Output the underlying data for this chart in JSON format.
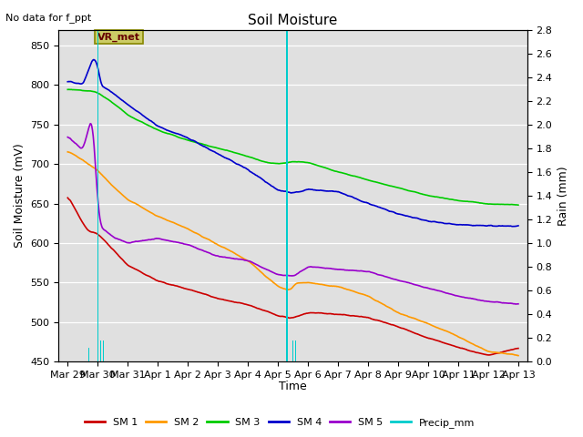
{
  "title": "Soil Moisture",
  "subtitle": "No data for f_ppt",
  "ylabel_left": "Soil Moisture (mV)",
  "ylabel_right": "Rain (mm)",
  "xlabel": "Time",
  "ylim_left": [
    450,
    870
  ],
  "ylim_right": [
    0.0,
    2.8
  ],
  "yticks_left": [
    450,
    500,
    550,
    600,
    650,
    700,
    750,
    800,
    850
  ],
  "yticks_right": [
    0.0,
    0.2,
    0.4,
    0.6,
    0.8,
    1.0,
    1.2,
    1.4,
    1.6,
    1.8,
    2.0,
    2.2,
    2.4,
    2.6,
    2.8
  ],
  "xtick_labels": [
    "Mar 29",
    "Mar 30",
    "Mar 31",
    "Apr 1",
    "Apr 2",
    "Apr 3",
    "Apr 4",
    "Apr 5",
    "Apr 6",
    "Apr 7",
    "Apr 8",
    "Apr 9",
    "Apr 10",
    "Apr 11",
    "Apr 12",
    "Apr 13"
  ],
  "colors": {
    "SM1": "#cc0000",
    "SM2": "#ff9900",
    "SM3": "#00cc00",
    "SM4": "#0000cc",
    "SM5": "#9900cc",
    "precip": "#00cccc",
    "background": "#e0e0e0",
    "vr_met_bg": "#cccc66",
    "vr_met_text": "#660000",
    "vr_met_edge": "#888800"
  },
  "vr_met_label": "VR_met",
  "legend_labels": [
    "SM 1",
    "SM 2",
    "SM 3",
    "SM 4",
    "SM 5",
    "Precip_mm"
  ],
  "precip_x": [
    0.7,
    1.0,
    1.1,
    1.2,
    7.3,
    7.5,
    7.6
  ],
  "precip_h": [
    0.12,
    2.8,
    0.18,
    0.18,
    2.8,
    0.18,
    0.18
  ],
  "precip_bar_width": 0.035,
  "sm1_knots_x": [
    0,
    0.3,
    0.5,
    0.7,
    1.0,
    1.5,
    2,
    3,
    4,
    5,
    6,
    7,
    7.5,
    8,
    9,
    10,
    11,
    12,
    13,
    14,
    15
  ],
  "sm1_knots_y": [
    660,
    640,
    625,
    615,
    612,
    592,
    572,
    552,
    542,
    530,
    522,
    508,
    505,
    512,
    510,
    506,
    494,
    480,
    468,
    458,
    467
  ],
  "sm2_knots_x": [
    0,
    0.5,
    1.0,
    1.5,
    2,
    3,
    4,
    5,
    6,
    7,
    7.4,
    7.6,
    8,
    9,
    10,
    11,
    12,
    13,
    14,
    15
  ],
  "sm2_knots_y": [
    717,
    705,
    692,
    672,
    655,
    634,
    618,
    598,
    578,
    545,
    540,
    550,
    550,
    545,
    533,
    512,
    498,
    482,
    463,
    458
  ],
  "sm3_knots_x": [
    0,
    0.5,
    0.85,
    1.0,
    1.5,
    2,
    3,
    4,
    5,
    5.5,
    6,
    6.5,
    7,
    7.5,
    8,
    9,
    10,
    11,
    12,
    13,
    14,
    15
  ],
  "sm3_knots_y": [
    795,
    793,
    792,
    790,
    778,
    762,
    743,
    730,
    720,
    715,
    710,
    703,
    700,
    703,
    702,
    690,
    680,
    670,
    660,
    654,
    650,
    648
  ],
  "sm4_knots_x": [
    0,
    0.5,
    0.85,
    1.0,
    1.1,
    1.5,
    2,
    3,
    4,
    5,
    6,
    7,
    7.5,
    8,
    9,
    10,
    11,
    12,
    13,
    14,
    15
  ],
  "sm4_knots_y": [
    805,
    800,
    835,
    825,
    800,
    790,
    775,
    748,
    733,
    713,
    693,
    667,
    663,
    668,
    665,
    650,
    637,
    628,
    623,
    622,
    621
  ],
  "sm5_knots_x": [
    0,
    0.5,
    0.8,
    0.85,
    1.0,
    1.1,
    1.5,
    2,
    3,
    4,
    5,
    6,
    7,
    7.5,
    8,
    9,
    10,
    11,
    12,
    13,
    14,
    15
  ],
  "sm5_knots_y": [
    735,
    718,
    760,
    740,
    650,
    620,
    608,
    600,
    606,
    598,
    583,
    578,
    560,
    558,
    570,
    567,
    564,
    553,
    543,
    533,
    526,
    523
  ]
}
